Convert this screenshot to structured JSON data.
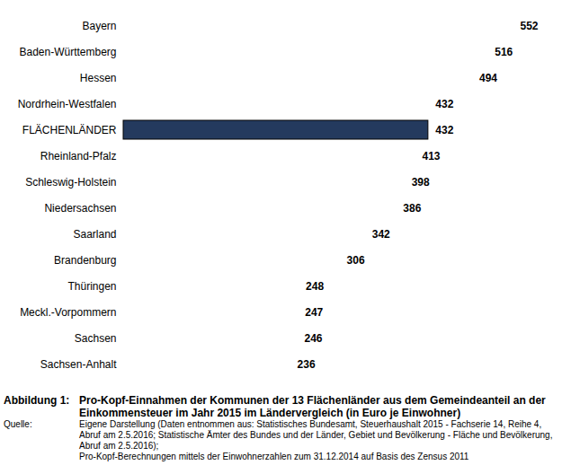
{
  "chart_data": {
    "type": "bar",
    "orientation": "horizontal",
    "figure_label": "Abbildung 1:",
    "title": "Pro-Kopf-Einnahmen der Kommunen der 13 Flächenländer aus dem Gemeindeanteil an der Einkommensteuer im Jahr 2015 im Ländervergleich (in Euro je Einwohner)",
    "source_label": "Quelle:",
    "source": [
      "Eigene Darstellung (Daten entnommen aus: Statistisches Bundesamt, Steuerhaushalt 2015 - Fachserie 14, Reihe 4, Abruf am 2.5.2016;  Statistische Ämter des Bundes und der Länder, Gebiet und Bevölkerung - Fläche und Bevölkerung, Abruf am 2.5.2016);",
      "Pro-Kopf-Berechnungen mittels der Einwohnerzahlen zum 31.12.2014 auf Basis des Zensus 2011"
    ],
    "categories": [
      "Bayern",
      "Baden-Württemberg",
      "Hessen",
      "Nordrhein-Westfalen",
      "FLÄCHENLÄNDER",
      "Rheinland-Pfalz",
      "Schleswig-Holstein",
      "Niedersachsen",
      "Saarland",
      "Brandenburg",
      "Thüringen",
      "Meckl.-Vorpommern",
      "Sachsen",
      "Sachsen-Anhalt"
    ],
    "values": [
      552,
      516,
      494,
      432,
      432,
      413,
      398,
      386,
      342,
      306,
      248,
      247,
      246,
      236
    ],
    "colors": [
      "#3f5f9e",
      "#3f5f9e",
      "#3f5f9e",
      "#3f5f9e",
      "#243a5e",
      "#3f5f9e",
      "#3f5f9e",
      "#3f5f9e",
      "#3f5f9e",
      "#3f5f9e",
      "#3f5f9e",
      "#3f5f9e",
      "#3f5f9e",
      "#3f5f9e"
    ],
    "data_labels": true,
    "tick_labels": "y",
    "grid": false
  }
}
